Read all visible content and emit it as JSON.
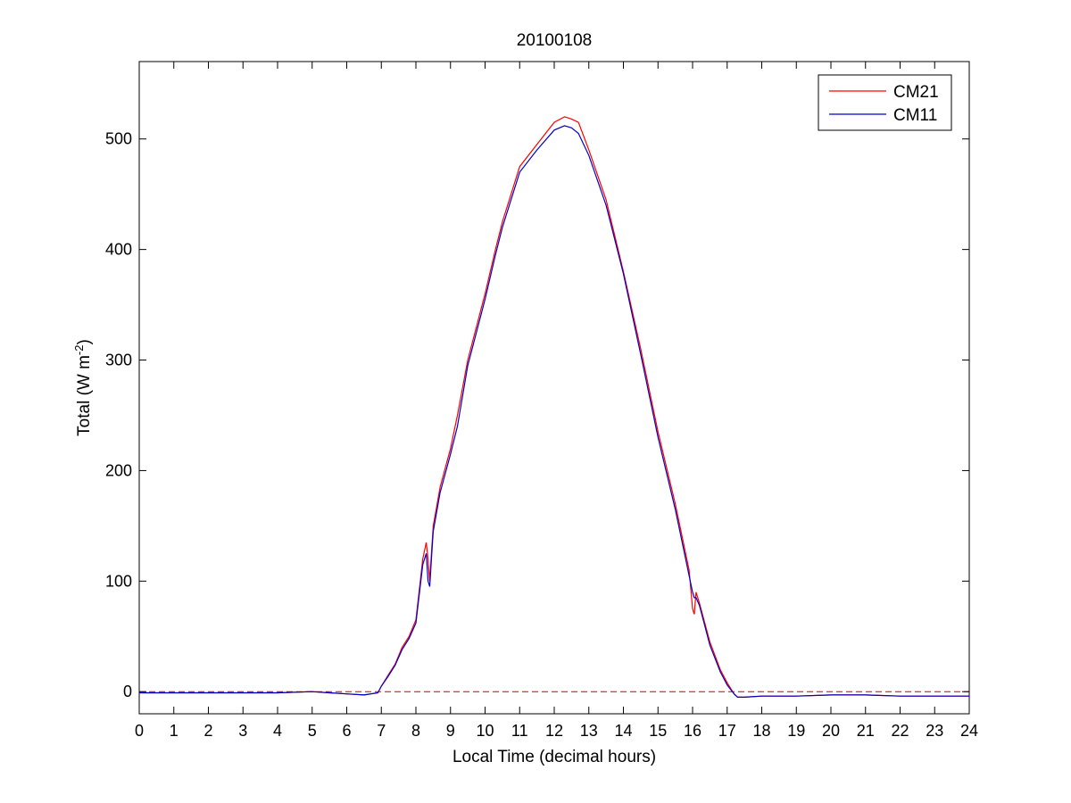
{
  "chart_data": {
    "type": "line",
    "title": "20100108",
    "xlabel": "Local Time (decimal hours)",
    "ylabel": "Total (W m^-2)",
    "ylabel_parts": {
      "main": "Total (W m",
      "sup": "-2",
      "close": ")"
    },
    "xlim": [
      0,
      24
    ],
    "ylim": [
      -20,
      570
    ],
    "xticks": [
      0,
      1,
      2,
      3,
      4,
      5,
      6,
      7,
      8,
      9,
      10,
      11,
      12,
      13,
      14,
      15,
      16,
      17,
      18,
      19,
      20,
      21,
      22,
      23,
      24
    ],
    "yticks": [
      0,
      100,
      200,
      300,
      400,
      500
    ],
    "legend_position": "top-right",
    "grid": false,
    "reference_line": {
      "y": 0,
      "style": "dashed",
      "color": "#cc0000"
    },
    "series": [
      {
        "name": "CM21",
        "color": "#ff0000",
        "x": [
          0,
          1,
          2,
          3,
          4,
          5,
          5.5,
          6,
          6.5,
          6.9,
          7,
          7.2,
          7.4,
          7.6,
          7.8,
          8,
          8.2,
          8.3,
          8.35,
          8.4,
          8.45,
          8.5,
          8.7,
          9,
          9.2,
          9.5,
          10,
          10.3,
          10.5,
          11,
          11.5,
          12,
          12.3,
          12.5,
          12.7,
          13,
          13.5,
          14,
          14.5,
          15,
          15.5,
          15.9,
          16,
          16.05,
          16.1,
          16.2,
          16.5,
          16.8,
          17,
          17.2,
          17.3,
          17.5,
          18,
          19,
          20,
          21,
          22,
          23,
          24
        ],
        "y": [
          -1,
          -1,
          -1,
          -1,
          -1,
          0,
          -1,
          -2,
          -3,
          -1,
          5,
          15,
          25,
          40,
          50,
          65,
          120,
          135,
          120,
          100,
          125,
          150,
          185,
          220,
          250,
          300,
          360,
          400,
          425,
          475,
          495,
          515,
          520,
          518,
          515,
          490,
          445,
          380,
          310,
          235,
          170,
          110,
          75,
          70,
          90,
          80,
          45,
          20,
          8,
          -2,
          -5,
          -5,
          -4,
          -4,
          -3,
          -3,
          -4,
          -4,
          -4
        ]
      },
      {
        "name": "CM11",
        "color": "#0000cc",
        "x": [
          0,
          1,
          2,
          3,
          4,
          5,
          5.5,
          6,
          6.5,
          6.9,
          7,
          7.2,
          7.4,
          7.6,
          7.8,
          8,
          8.2,
          8.3,
          8.35,
          8.4,
          8.45,
          8.5,
          8.7,
          9,
          9.2,
          9.5,
          10,
          10.3,
          10.5,
          11,
          11.5,
          12,
          12.3,
          12.5,
          12.7,
          13,
          13.5,
          14,
          14.5,
          15,
          15.5,
          15.9,
          16,
          16.05,
          16.1,
          16.2,
          16.5,
          16.8,
          17,
          17.2,
          17.3,
          17.5,
          18,
          19,
          20,
          21,
          22,
          23,
          24
        ],
        "y": [
          -1,
          -1,
          -1,
          -1,
          -1,
          0,
          -1,
          -2,
          -3,
          -1,
          5,
          14,
          24,
          38,
          48,
          62,
          115,
          125,
          100,
          95,
          120,
          145,
          180,
          215,
          240,
          295,
          355,
          395,
          420,
          470,
          490,
          508,
          512,
          510,
          505,
          485,
          440,
          378,
          305,
          230,
          165,
          105,
          90,
          85,
          85,
          78,
          42,
          18,
          6,
          -2,
          -5,
          -5,
          -4,
          -4,
          -3,
          -3,
          -4,
          -4,
          -4
        ]
      }
    ]
  }
}
